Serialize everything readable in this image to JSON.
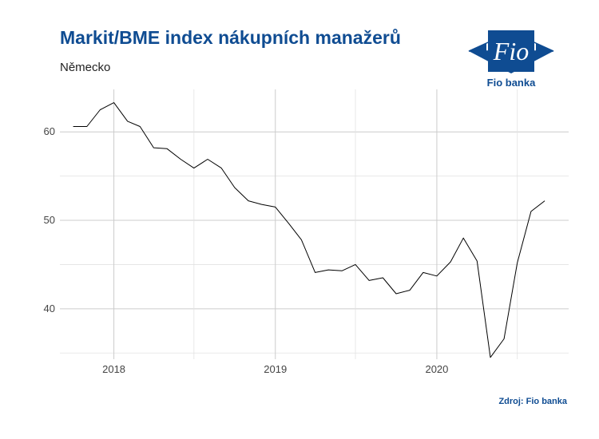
{
  "header": {
    "title": "Markit/BME index nákupních manažerů",
    "subtitle": "Německo"
  },
  "logo": {
    "brand": "Fio banka",
    "mark": "Fio",
    "color": "#0f4c92"
  },
  "footer": {
    "source": "Zdroj: Fio banka"
  },
  "chart_data": {
    "type": "line",
    "title": "Markit/BME index nákupních manažerů",
    "subtitle": "Německo",
    "xlabel": "",
    "ylabel": "",
    "x_ticks": [
      {
        "date": "2018-01-01",
        "label": "2018"
      },
      {
        "date": "2019-01-01",
        "label": "2019"
      },
      {
        "date": "2020-01-01",
        "label": "2020"
      }
    ],
    "y_ticks": [
      40,
      50,
      60
    ],
    "ylim": [
      34.3,
      64.8
    ],
    "xlim": [
      "2017-09-01",
      "2020-10-25"
    ],
    "grid": true,
    "line_color": "#000000",
    "series": [
      {
        "x": [
          "2017-10-01",
          "2017-11-01",
          "2017-12-01",
          "2018-01-01",
          "2018-02-01",
          "2018-03-01",
          "2018-04-01",
          "2018-05-01",
          "2018-06-01",
          "2018-07-01",
          "2018-08-01",
          "2018-09-01",
          "2018-10-01",
          "2018-11-01",
          "2018-12-01",
          "2019-01-01",
          "2019-02-01",
          "2019-03-01",
          "2019-04-01",
          "2019-05-01",
          "2019-06-01",
          "2019-07-01",
          "2019-08-01",
          "2019-09-01",
          "2019-10-01",
          "2019-11-01",
          "2019-12-01",
          "2020-01-01",
          "2020-02-01",
          "2020-03-01",
          "2020-04-01",
          "2020-05-01",
          "2020-06-01",
          "2020-07-01",
          "2020-08-01",
          "2020-09-01"
        ],
        "values": [
          60.6,
          60.6,
          62.5,
          63.3,
          61.2,
          60.6,
          58.2,
          58.1,
          56.9,
          55.9,
          56.9,
          55.9,
          53.7,
          52.2,
          51.8,
          51.5,
          49.6,
          47.8,
          44.1,
          44.4,
          44.3,
          45.0,
          43.2,
          43.5,
          41.7,
          42.1,
          44.1,
          43.7,
          45.3,
          48.0,
          45.4,
          34.5,
          36.6,
          45.2,
          51.0,
          52.2
        ]
      }
    ]
  }
}
